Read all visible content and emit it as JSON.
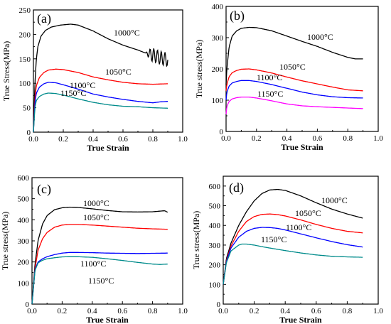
{
  "figure": {
    "panels": [
      {
        "label": "(a)",
        "xlabel": "True Strain",
        "ylabel": "True Stress(MPa)",
        "yticks": [
          "0",
          "50",
          "100",
          "150",
          "200",
          "250"
        ],
        "xticks": [
          "0.0",
          "0.2",
          "0.4",
          "0.6",
          "0.8",
          "1.0"
        ]
      },
      {
        "label": "(b)",
        "xlabel": "True Strain",
        "ylabel": "True stress(MPa)",
        "yticks": [
          "0",
          "100",
          "200",
          "300",
          "400"
        ],
        "xticks": [
          "0.0",
          "0.2",
          "0.4",
          "0.6",
          "0.8",
          "1.0"
        ]
      },
      {
        "label": "(c)",
        "xlabel": "True Strain",
        "ylabel": "True stress(MPa)",
        "yticks": [
          "0",
          "100",
          "200",
          "300",
          "400",
          "500",
          "600"
        ],
        "xticks": [
          "0.0",
          "0.2",
          "0.4",
          "0.6",
          "0.8",
          "1.0"
        ]
      },
      {
        "label": "(d)",
        "xlabel": "True Strain",
        "ylabel": "True stress(MPa)",
        "yticks": [
          "0",
          "100",
          "200",
          "300",
          "400",
          "500",
          "600"
        ],
        "xticks": [
          "0.0",
          "0.2",
          "0.4",
          "0.6",
          "0.8",
          "1.0"
        ]
      }
    ]
  },
  "chart_data": [
    {
      "type": "line",
      "panel": "(a)",
      "xlabel": "True Strain",
      "ylabel": "True Stress(MPa)",
      "xlim": [
        0,
        1.0
      ],
      "ylim": [
        0,
        250
      ],
      "grid": false,
      "series": [
        {
          "name": "1000°C",
          "color": "#000000",
          "x": [
            0,
            0.01,
            0.02,
            0.03,
            0.05,
            0.08,
            0.12,
            0.18,
            0.25,
            0.3,
            0.4,
            0.5,
            0.6,
            0.7,
            0.75,
            0.8,
            0.85,
            0.9
          ],
          "y": [
            0,
            100,
            150,
            175,
            196,
            208,
            215,
            219,
            221,
            219,
            207,
            191,
            178,
            168,
            162,
            158,
            152,
            148
          ],
          "oscillation": {
            "start": 0.75,
            "amplitude": 14,
            "period": 0.025
          }
        },
        {
          "name": "1050°C",
          "color": "#ff0000",
          "x": [
            0,
            0.01,
            0.02,
            0.04,
            0.07,
            0.1,
            0.15,
            0.2,
            0.3,
            0.4,
            0.5,
            0.6,
            0.7,
            0.8,
            0.9
          ],
          "y": [
            0,
            70,
            95,
            112,
            122,
            127,
            129,
            128,
            122,
            113,
            107,
            102,
            99,
            98,
            99
          ]
        },
        {
          "name": "1100°C",
          "color": "#0000ff",
          "x": [
            0,
            0.01,
            0.02,
            0.04,
            0.07,
            0.1,
            0.15,
            0.2,
            0.3,
            0.4,
            0.5,
            0.6,
            0.7,
            0.8,
            0.85,
            0.9
          ],
          "y": [
            0,
            60,
            80,
            92,
            99,
            102,
            101,
            97,
            88,
            78,
            72,
            67,
            63,
            60,
            62,
            63
          ]
        },
        {
          "name": "1150°C",
          "color": "#008b8b",
          "x": [
            0,
            0.01,
            0.02,
            0.04,
            0.07,
            0.1,
            0.15,
            0.2,
            0.3,
            0.4,
            0.5,
            0.6,
            0.7,
            0.8,
            0.9
          ],
          "y": [
            0,
            50,
            65,
            73,
            78,
            80,
            79,
            76,
            68,
            61,
            56,
            53,
            52,
            50,
            49
          ]
        }
      ],
      "annotations": [
        "1000°C",
        "1050°C",
        "1100°C",
        "1150°C"
      ]
    },
    {
      "type": "line",
      "panel": "(b)",
      "xlabel": "True Strain",
      "ylabel": "True stress(MPa)",
      "xlim": [
        0,
        1.0
      ],
      "ylim": [
        0,
        400
      ],
      "grid": false,
      "series": [
        {
          "name": "1000°C",
          "color": "#000000",
          "x": [
            0,
            0.005,
            0.02,
            0.04,
            0.07,
            0.1,
            0.15,
            0.2,
            0.3,
            0.4,
            0.5,
            0.6,
            0.7,
            0.8,
            0.85,
            0.9
          ],
          "y": [
            150,
            200,
            270,
            305,
            322,
            330,
            333,
            332,
            322,
            305,
            288,
            272,
            253,
            237,
            232,
            232
          ]
        },
        {
          "name": "1050°C",
          "color": "#ff0000",
          "x": [
            0,
            0.005,
            0.02,
            0.04,
            0.07,
            0.1,
            0.15,
            0.2,
            0.3,
            0.4,
            0.5,
            0.6,
            0.7,
            0.8,
            0.9
          ],
          "y": [
            130,
            150,
            175,
            188,
            195,
            199,
            200,
            197,
            187,
            174,
            162,
            152,
            142,
            133,
            130
          ]
        },
        {
          "name": "1100°C",
          "color": "#0000ff",
          "x": [
            0,
            0.005,
            0.02,
            0.04,
            0.07,
            0.1,
            0.15,
            0.2,
            0.3,
            0.4,
            0.5,
            0.6,
            0.7,
            0.8,
            0.9
          ],
          "y": [
            100,
            125,
            145,
            155,
            160,
            163,
            163,
            160,
            150,
            138,
            126,
            117,
            111,
            108,
            107
          ]
        },
        {
          "name": "1150°C",
          "color": "#ff00ff",
          "x": [
            0,
            0.005,
            0.02,
            0.04,
            0.07,
            0.1,
            0.15,
            0.2,
            0.3,
            0.4,
            0.5,
            0.6,
            0.7,
            0.8,
            0.9
          ],
          "y": [
            55,
            80,
            96,
            104,
            108,
            110,
            110,
            107,
            98,
            88,
            82,
            79,
            77,
            75,
            73
          ]
        }
      ],
      "annotations": [
        "1000°C",
        "1050°C",
        "1100°C",
        "1150°C"
      ]
    },
    {
      "type": "line",
      "panel": "(c)",
      "xlabel": "True Strain",
      "ylabel": "True stress(MPa)",
      "xlim": [
        0,
        1.0
      ],
      "ylim": [
        0,
        600
      ],
      "grid": false,
      "series": [
        {
          "name": "1000°C",
          "color": "#000000",
          "x": [
            0,
            0.02,
            0.04,
            0.07,
            0.1,
            0.15,
            0.2,
            0.25,
            0.3,
            0.4,
            0.5,
            0.6,
            0.7,
            0.8,
            0.88,
            0.9
          ],
          "y": [
            0,
            190,
            300,
            380,
            420,
            448,
            457,
            460,
            459,
            452,
            444,
            438,
            437,
            438,
            443,
            436
          ]
        },
        {
          "name": "1050°C",
          "color": "#ff0000",
          "x": [
            0,
            0.02,
            0.04,
            0.07,
            0.1,
            0.15,
            0.2,
            0.25,
            0.3,
            0.4,
            0.5,
            0.6,
            0.7,
            0.8,
            0.9
          ],
          "y": [
            0,
            170,
            255,
            310,
            340,
            365,
            375,
            378,
            378,
            375,
            370,
            365,
            360,
            357,
            355
          ]
        },
        {
          "name": "1100°C",
          "color": "#0000ff",
          "x": [
            0,
            0.02,
            0.04,
            0.07,
            0.1,
            0.15,
            0.2,
            0.25,
            0.3,
            0.4,
            0.5,
            0.6,
            0.7,
            0.8,
            0.9
          ],
          "y": [
            0,
            165,
            200,
            215,
            225,
            235,
            242,
            245,
            245,
            244,
            242,
            241,
            240,
            241,
            242
          ]
        },
        {
          "name": "1150°C",
          "color": "#008b8b",
          "x": [
            0,
            0.02,
            0.04,
            0.07,
            0.1,
            0.15,
            0.2,
            0.25,
            0.3,
            0.4,
            0.5,
            0.6,
            0.7,
            0.8,
            0.85,
            0.9
          ],
          "y": [
            0,
            160,
            195,
            208,
            215,
            220,
            224,
            225,
            225,
            222,
            215,
            207,
            198,
            190,
            188,
            190
          ]
        }
      ],
      "annotations": [
        "1000°C",
        "1050°C",
        "1100°C",
        "1150°C"
      ]
    },
    {
      "type": "line",
      "panel": "(d)",
      "xlabel": "True Strain",
      "ylabel": "True stress(MPa)",
      "xlim": [
        0,
        1.0
      ],
      "ylim": [
        0,
        650
      ],
      "grid": false,
      "series": [
        {
          "name": "1000°C",
          "color": "#000000",
          "x": [
            0,
            0.02,
            0.05,
            0.1,
            0.15,
            0.2,
            0.25,
            0.3,
            0.35,
            0.4,
            0.5,
            0.6,
            0.7,
            0.8,
            0.9
          ],
          "y": [
            100,
            230,
            310,
            400,
            470,
            525,
            562,
            580,
            583,
            578,
            550,
            515,
            483,
            458,
            437
          ]
        },
        {
          "name": "1050°C",
          "color": "#ff0000",
          "x": [
            0,
            0.02,
            0.05,
            0.1,
            0.15,
            0.2,
            0.25,
            0.3,
            0.35,
            0.4,
            0.5,
            0.6,
            0.7,
            0.8,
            0.9
          ],
          "y": [
            100,
            220,
            295,
            370,
            420,
            445,
            456,
            458,
            455,
            448,
            428,
            405,
            385,
            370,
            362
          ]
        },
        {
          "name": "1100°C",
          "color": "#0000ff",
          "x": [
            0,
            0.02,
            0.05,
            0.1,
            0.15,
            0.2,
            0.25,
            0.3,
            0.35,
            0.4,
            0.5,
            0.6,
            0.7,
            0.8,
            0.9
          ],
          "y": [
            100,
            215,
            285,
            340,
            370,
            385,
            390,
            389,
            385,
            377,
            357,
            337,
            318,
            302,
            290
          ]
        },
        {
          "name": "1150°C",
          "color": "#008b8b",
          "x": [
            0,
            0.02,
            0.05,
            0.1,
            0.12,
            0.15,
            0.2,
            0.25,
            0.3,
            0.4,
            0.5,
            0.6,
            0.7,
            0.8,
            0.9
          ],
          "y": [
            100,
            210,
            270,
            300,
            305,
            305,
            300,
            292,
            285,
            272,
            260,
            250,
            243,
            240,
            238
          ]
        }
      ],
      "annotations": [
        "1000°C",
        "1050°C",
        "1100°C",
        "1150°C"
      ]
    }
  ]
}
